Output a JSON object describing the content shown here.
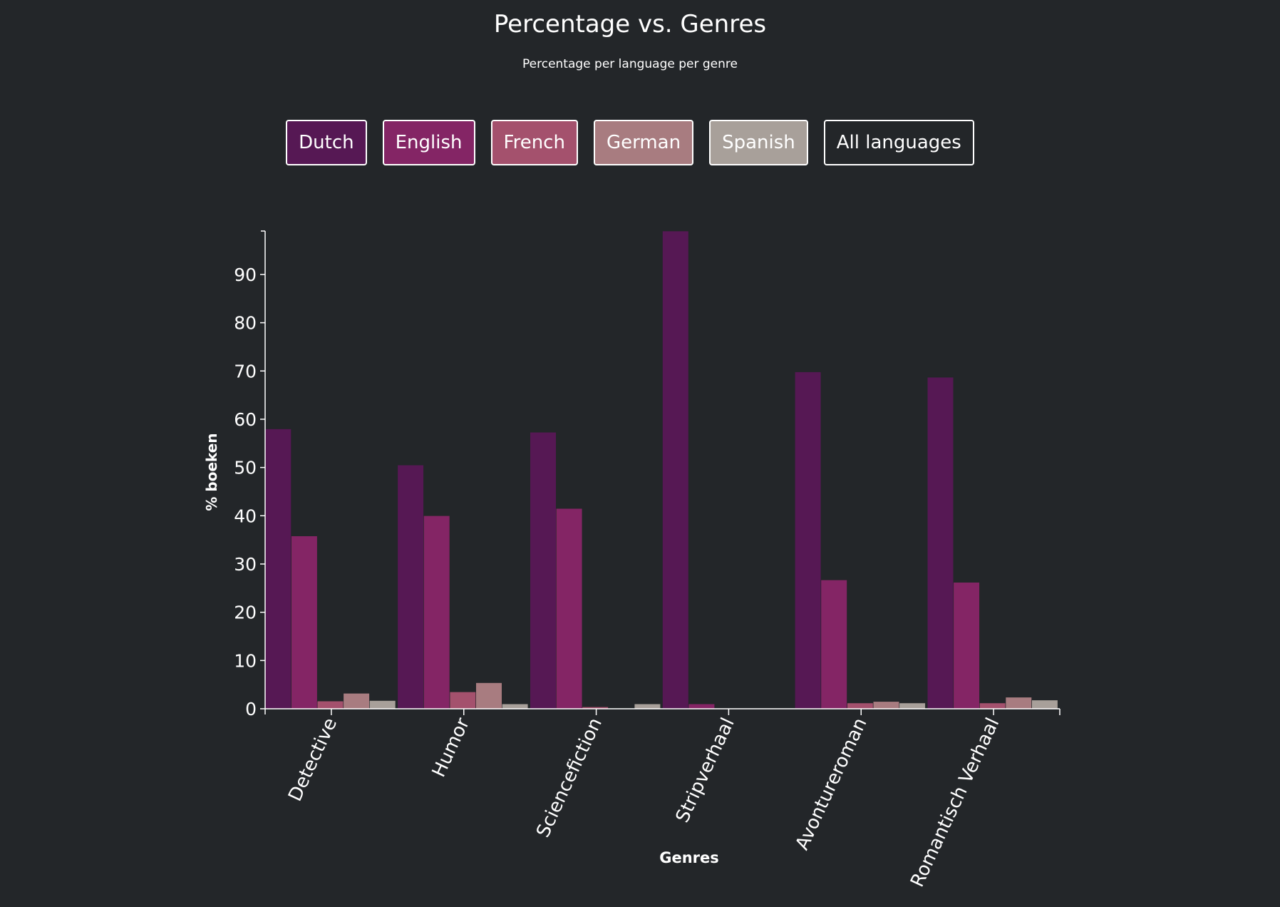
{
  "header": {
    "title": "Percentage vs. Genres",
    "subtitle": "Percentage per language per genre"
  },
  "buttons": [
    {
      "label": "Dutch",
      "color": "#561854"
    },
    {
      "label": "English",
      "color": "#842565"
    },
    {
      "label": "French",
      "color": "#a4516d"
    },
    {
      "label": "German",
      "color": "#a87c80"
    },
    {
      "label": "Spanish",
      "color": "#a8a09a"
    },
    {
      "label": "All languages",
      "color": "#232629"
    }
  ],
  "chart_data": {
    "type": "bar",
    "title": "Percentage vs. Genres",
    "subtitle": "Percentage per language per genre",
    "xlabel": "Genres",
    "ylabel": "% boeken",
    "ylim": [
      0,
      99
    ],
    "yticks": [
      0,
      10,
      20,
      30,
      40,
      50,
      60,
      70,
      80,
      90
    ],
    "categories": [
      "Detective",
      "Humor",
      "Sciencefiction",
      "Stripverhaal",
      "Avontureroman",
      "Romantisch Verhaal"
    ],
    "series": [
      {
        "name": "Dutch",
        "color": "#561854",
        "values": [
          58,
          50.5,
          57.3,
          99,
          69.8,
          68.7
        ]
      },
      {
        "name": "English",
        "color": "#842565",
        "values": [
          35.8,
          40,
          41.5,
          1,
          26.7,
          26.2
        ]
      },
      {
        "name": "French",
        "color": "#a4516d",
        "values": [
          1.6,
          3.5,
          0.4,
          0,
          1.2,
          1.2
        ]
      },
      {
        "name": "German",
        "color": "#a87c80",
        "values": [
          3.2,
          5.4,
          0.1,
          0,
          1.5,
          2.4
        ]
      },
      {
        "name": "Spanish",
        "color": "#a8a09a",
        "values": [
          1.7,
          1,
          1,
          0,
          1.2,
          1.8
        ]
      }
    ],
    "grid": false,
    "legend": "top buttons"
  }
}
